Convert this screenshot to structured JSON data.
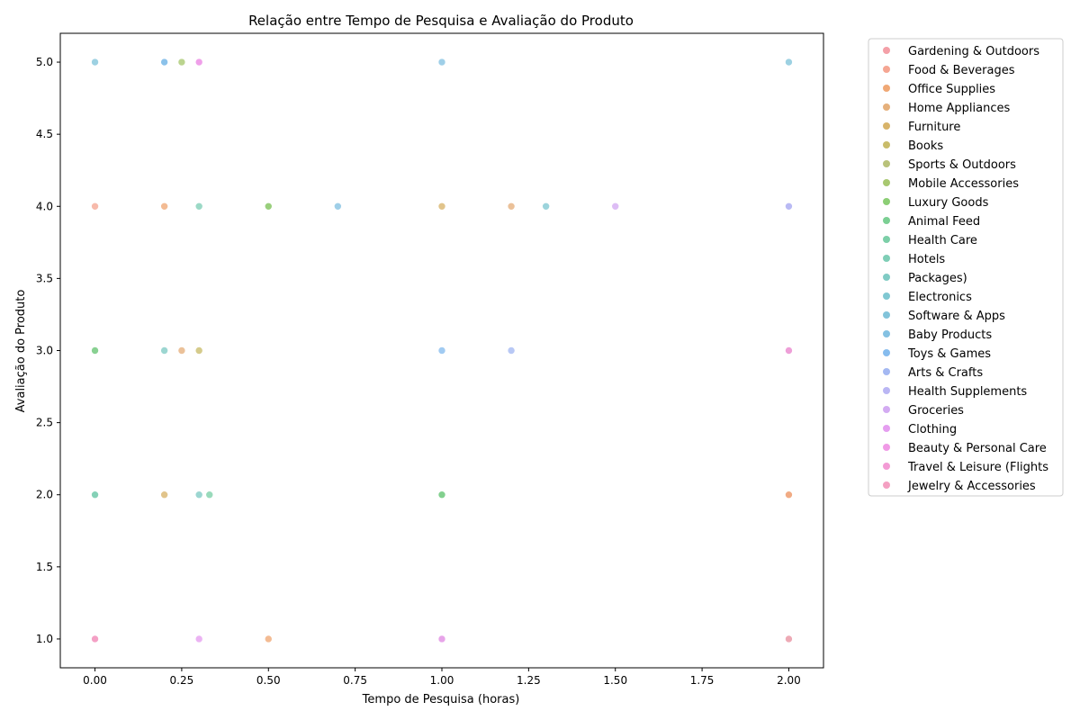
{
  "chart_data": {
    "type": "scatter",
    "title": "Relação entre Tempo de Pesquisa e Avaliação do Produto",
    "xlabel": "Tempo de Pesquisa (horas)",
    "ylabel": "Avaliação do Produto",
    "xlim": [
      -0.1,
      2.1
    ],
    "ylim": [
      0.8,
      5.2
    ],
    "xticks": [
      "0.00",
      "0.25",
      "0.50",
      "0.75",
      "1.00",
      "1.25",
      "1.50",
      "1.75",
      "2.00"
    ],
    "yticks": [
      "1.0",
      "1.5",
      "2.0",
      "2.5",
      "3.0",
      "3.5",
      "4.0",
      "4.5",
      "5.0"
    ],
    "grid": false,
    "legend_placement": "outside-right",
    "series": [
      {
        "name": "Gardening & Outdoors",
        "color": "#f4a0a8",
        "points": [
          [
            0.0,
            1
          ],
          [
            2.0,
            2
          ]
        ]
      },
      {
        "name": "Food & Beverages",
        "color": "#f5a693",
        "points": [
          [
            2.0,
            3
          ],
          [
            0.0,
            4
          ]
        ]
      },
      {
        "name": "Office Supplies",
        "color": "#f0a875",
        "points": [
          [
            0.2,
            4
          ],
          [
            0.5,
            1
          ],
          [
            2.0,
            2
          ]
        ]
      },
      {
        "name": "Home Appliances",
        "color": "#e5b07c",
        "points": [
          [
            1.2,
            4
          ],
          [
            0.25,
            3
          ]
        ]
      },
      {
        "name": "Furniture",
        "color": "#d8b46a",
        "points": [
          [
            0.2,
            2
          ],
          [
            1.0,
            4
          ]
        ]
      },
      {
        "name": "Books",
        "color": "#c9bc6a",
        "points": [
          [
            0.3,
            3
          ],
          [
            2.0,
            1
          ]
        ]
      },
      {
        "name": "Sports & Outdoors",
        "color": "#b9c27a",
        "points": [
          [
            0.5,
            4
          ],
          [
            1.0,
            2
          ]
        ]
      },
      {
        "name": "Mobile Accessories",
        "color": "#a8c870",
        "points": [
          [
            0.25,
            5
          ],
          [
            0.0,
            3
          ]
        ]
      },
      {
        "name": "Luxury Goods",
        "color": "#8cce75",
        "points": [
          [
            0.5,
            4
          ],
          [
            1.0,
            2
          ]
        ]
      },
      {
        "name": "Animal Feed",
        "color": "#7bcf93",
        "points": [
          [
            0.0,
            3
          ],
          [
            1.0,
            2
          ]
        ]
      },
      {
        "name": "Health Care",
        "color": "#7ccfa8",
        "points": [
          [
            0.33,
            2
          ],
          [
            0.0,
            2
          ]
        ]
      },
      {
        "name": "Hotels",
        "color": "#7fceb6",
        "points": [
          [
            0.3,
            4
          ],
          [
            0.0,
            2
          ]
        ]
      },
      {
        "name": "Packages)",
        "color": "#80cbc4",
        "points": [
          [
            0.3,
            2
          ],
          [
            0.2,
            3
          ]
        ]
      },
      {
        "name": "Electronics",
        "color": "#80c8d2",
        "points": [
          [
            0.2,
            5
          ],
          [
            1.3,
            4
          ]
        ]
      },
      {
        "name": "Software & Apps",
        "color": "#82c4da",
        "points": [
          [
            0.0,
            5
          ],
          [
            2.0,
            5
          ]
        ]
      },
      {
        "name": "Baby Products",
        "color": "#84c1e2",
        "points": [
          [
            0.7,
            4
          ],
          [
            1.0,
            5
          ]
        ]
      },
      {
        "name": "Toys & Games",
        "color": "#86bcee",
        "points": [
          [
            1.0,
            3
          ],
          [
            0.2,
            5
          ]
        ]
      },
      {
        "name": "Arts & Crafts",
        "color": "#a4b8f2",
        "points": [
          [
            1.2,
            3
          ],
          [
            2.0,
            4
          ]
        ]
      },
      {
        "name": "Health Supplements",
        "color": "#bab6f4",
        "points": [
          [
            2.0,
            4
          ],
          [
            1.0,
            1
          ]
        ]
      },
      {
        "name": "Groceries",
        "color": "#d3abf2",
        "points": [
          [
            1.5,
            4
          ],
          [
            2.0,
            3
          ]
        ]
      },
      {
        "name": "Clothing",
        "color": "#e59ef0",
        "points": [
          [
            0.3,
            1
          ],
          [
            0.3,
            5
          ]
        ]
      },
      {
        "name": "Beauty & Personal Care",
        "color": "#f09ae6",
        "points": [
          [
            0.3,
            5
          ],
          [
            1.0,
            1
          ]
        ]
      },
      {
        "name": "Travel & Leisure (Flights",
        "color": "#f39bd5",
        "points": [
          [
            0.0,
            1
          ],
          [
            2.0,
            3
          ]
        ]
      },
      {
        "name": "Jewelry & Accessories",
        "color": "#f4a0c2",
        "points": [
          [
            0.0,
            1
          ],
          [
            2.0,
            1
          ]
        ]
      }
    ]
  }
}
